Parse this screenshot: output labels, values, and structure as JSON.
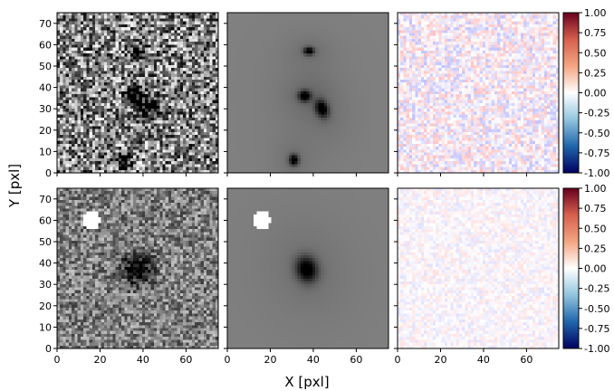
{
  "chart_data": {
    "type": "heatmap",
    "layout": "2x3 image grid with shared axes",
    "xlabel": "X [pxl]",
    "ylabel": "Y [pxl]",
    "xlim": [
      0,
      75
    ],
    "ylim": [
      0,
      75
    ],
    "x_ticks": [
      "0",
      "20",
      "40",
      "60"
    ],
    "y_ticks": [
      "0",
      "10",
      "20",
      "30",
      "40",
      "50",
      "60",
      "70"
    ],
    "colorbar": {
      "cmap": "seismic",
      "range": [
        -1.0,
        1.0
      ],
      "ticks": [
        "1.00",
        "0.75",
        "0.50",
        "0.25",
        "0.00",
        "-0.25",
        "-0.50",
        "-0.75",
        "-1.00"
      ],
      "colors": [
        "#67001f",
        "#d6604d",
        "#f4a582",
        "#ffffff",
        "#92c5de",
        "#2166ac",
        "#000060"
      ]
    },
    "rows": [
      {
        "panels": [
          {
            "kind": "observed",
            "cmap": "gray",
            "noise": "high"
          },
          {
            "kind": "model",
            "cmap": "gray",
            "sources": [
              {
                "x": 38,
                "y": 57,
                "rx": 2.2,
                "ry": 1.6,
                "angle": 0
              },
              {
                "x": 36,
                "y": 36,
                "rx": 2.6,
                "ry": 2.3,
                "angle": 0
              },
              {
                "x": 44,
                "y": 30,
                "rx": 2.6,
                "ry": 3.8,
                "angle": 20
              },
              {
                "x": 31,
                "y": 6,
                "rx": 2.0,
                "ry": 2.3,
                "angle": 0
              }
            ]
          },
          {
            "kind": "residual",
            "cmap": "seismic",
            "amplitude": 0.1
          }
        ]
      },
      {
        "panels": [
          {
            "kind": "observed",
            "cmap": "gray",
            "noise": "medium",
            "masked_region": {
              "x": 16,
              "y": 60
            }
          },
          {
            "kind": "model",
            "cmap": "gray",
            "masked_region": {
              "x": 16,
              "y": 60
            },
            "sources": [
              {
                "x": 37,
                "y": 37,
                "rx": 4.5,
                "ry": 5.5,
                "angle": 15
              }
            ]
          },
          {
            "kind": "residual",
            "cmap": "seismic",
            "amplitude": 0.05
          }
        ]
      }
    ]
  }
}
